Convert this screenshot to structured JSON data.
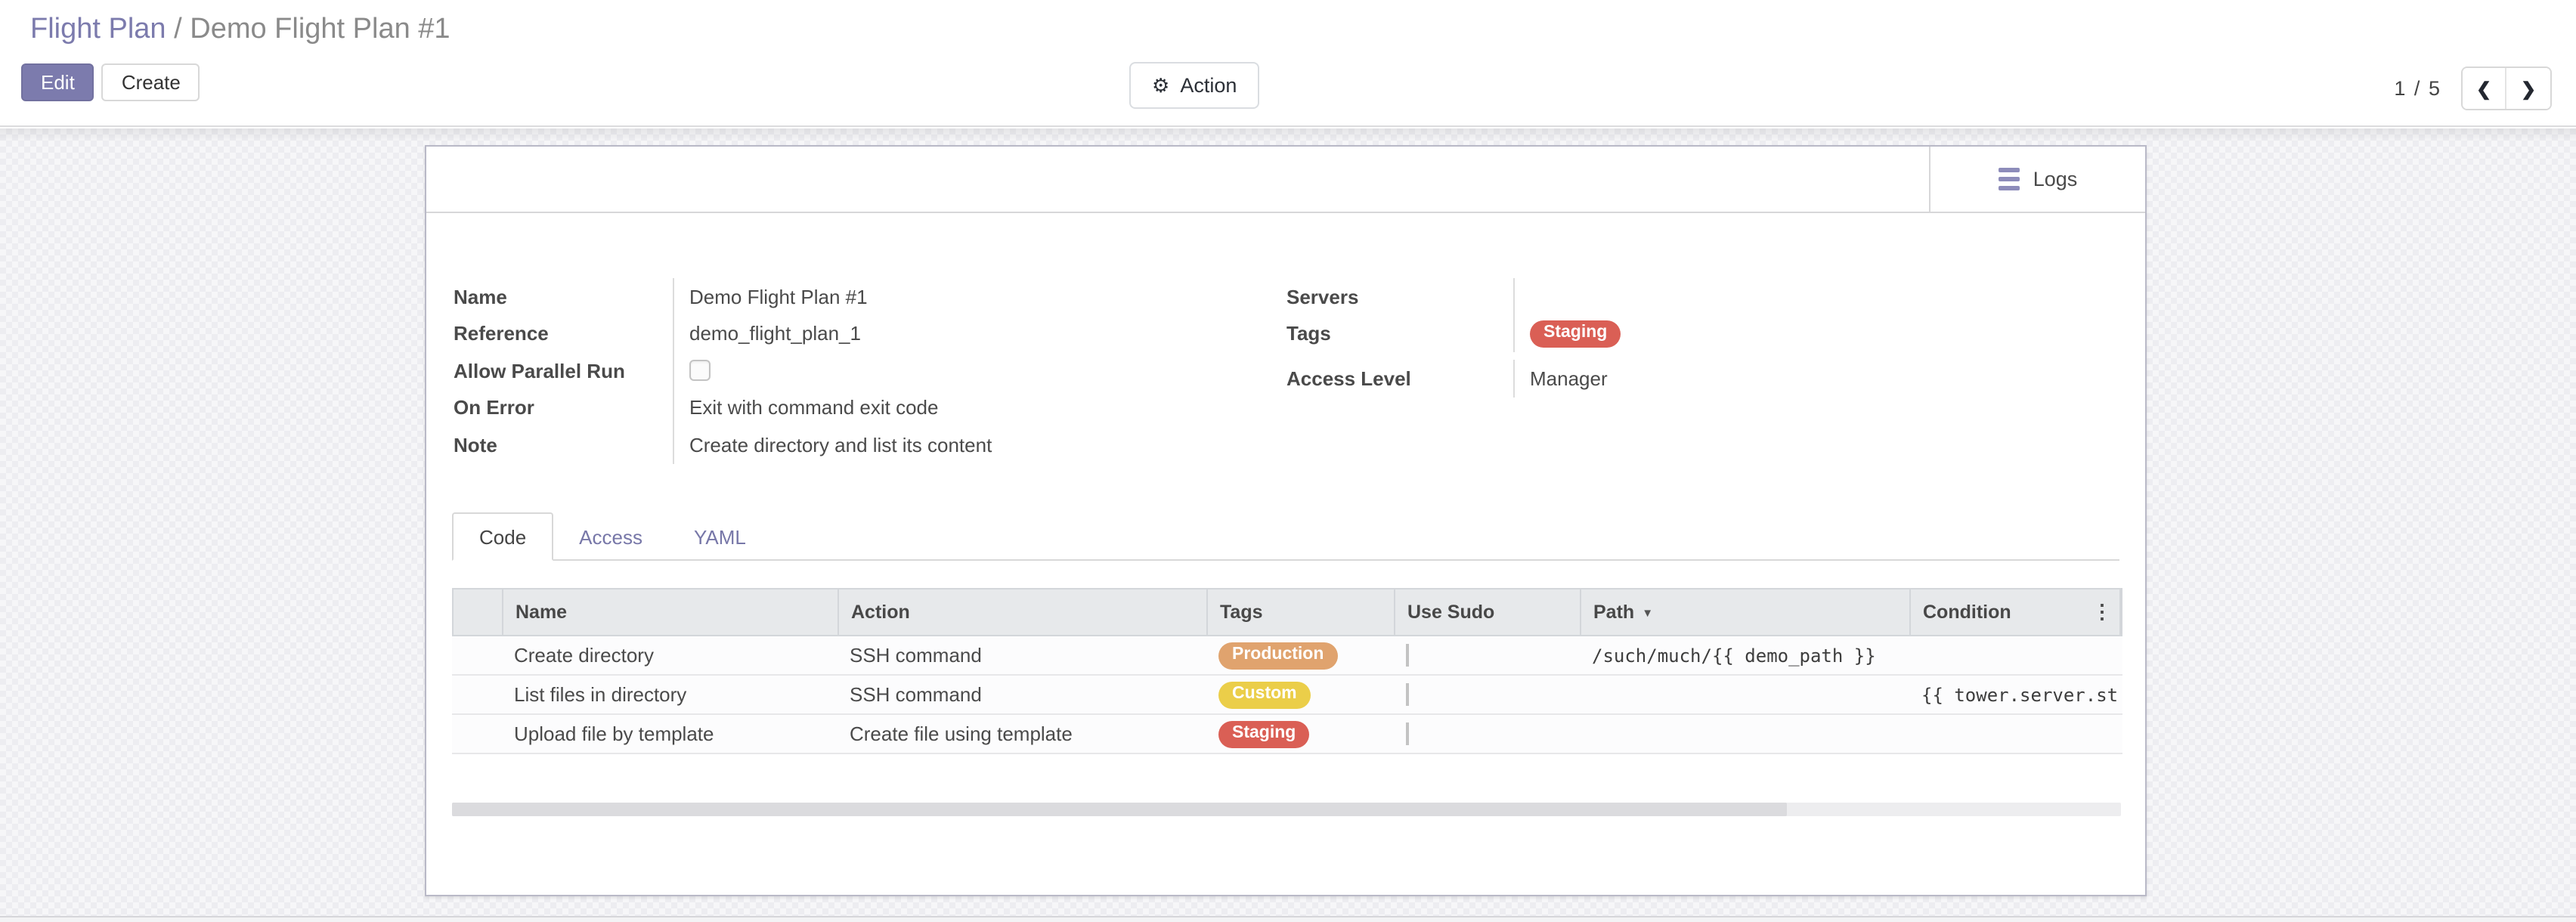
{
  "breadcrumb": {
    "parent": "Flight Plan",
    "separator": "/",
    "current": "Demo Flight Plan #1"
  },
  "toolbar": {
    "edit_label": "Edit",
    "create_label": "Create",
    "action_label": "Action",
    "gear_icon": "⚙"
  },
  "pager": {
    "current": "1",
    "separator": "/",
    "total": "5",
    "prev_icon": "❮",
    "next_icon": "❯"
  },
  "card": {
    "logs_label": "Logs",
    "fields_left": {
      "name": {
        "label": "Name",
        "value": "Demo Flight Plan #1"
      },
      "reference": {
        "label": "Reference",
        "value": "demo_flight_plan_1"
      },
      "allow_parallel_run": {
        "label": "Allow Parallel Run",
        "checked": false
      },
      "on_error": {
        "label": "On Error",
        "value": "Exit with command exit code"
      },
      "note": {
        "label": "Note",
        "value": "Create directory and list its content"
      }
    },
    "fields_right": {
      "servers": {
        "label": "Servers",
        "value": ""
      },
      "tags": {
        "label": "Tags",
        "badge": "Staging",
        "badge_color": "#da5f55"
      },
      "access_level": {
        "label": "Access Level",
        "value": "Manager"
      }
    },
    "tabs": [
      {
        "label": "Code",
        "active": true
      },
      {
        "label": "Access",
        "active": false
      },
      {
        "label": "YAML",
        "active": false
      }
    ],
    "table": {
      "columns": {
        "name": "Name",
        "action": "Action",
        "tags": "Tags",
        "use_sudo": "Use Sudo",
        "path": "Path",
        "condition": "Condition"
      },
      "sort": {
        "column": "Path",
        "direction": "desc",
        "icon": "▼"
      },
      "options_icon": "⋮",
      "rows": [
        {
          "name": "Create directory",
          "action": "SSH command",
          "tag": "Production",
          "tag_color": "#e0a36e",
          "use_sudo": false,
          "path": "/such/much/{{ demo_path }}",
          "condition": ""
        },
        {
          "name": "List files in directory",
          "action": "SSH command",
          "tag": "Custom",
          "tag_color": "#ebce49",
          "use_sudo": false,
          "path": "",
          "condition": "{{ tower.server.st"
        },
        {
          "name": "Upload file by template",
          "action": "Create file using template",
          "tag": "Staging",
          "tag_color": "#da5f55",
          "use_sudo": false,
          "path": "",
          "condition": ""
        }
      ]
    }
  },
  "colors": {
    "accent": "#7c7bad",
    "table_header_bg": "#e7e9eb"
  }
}
